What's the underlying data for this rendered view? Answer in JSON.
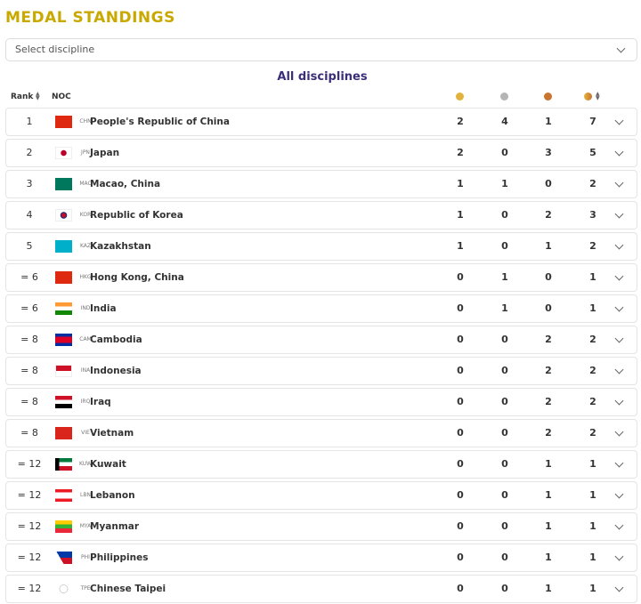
{
  "header": {
    "title": "MEDAL STANDINGS"
  },
  "filter": {
    "placeholder": "Select discipline"
  },
  "table": {
    "caption": "All disciplines",
    "columns": {
      "rank": "Rank",
      "noc": "NOC"
    },
    "rows": [
      [
        "1",
        "CHN",
        "People's Republic of China",
        2,
        4,
        1,
        7
      ],
      [
        "2",
        "JPN",
        "Japan",
        2,
        0,
        3,
        5
      ],
      [
        "3",
        "MAC",
        "Macao, China",
        1,
        1,
        0,
        2
      ],
      [
        "4",
        "KOR",
        "Republic of Korea",
        1,
        0,
        2,
        3
      ],
      [
        "5",
        "KAZ",
        "Kazakhstan",
        1,
        0,
        1,
        2
      ],
      [
        "= 6",
        "HKG",
        "Hong Kong, China",
        0,
        1,
        0,
        1
      ],
      [
        "= 6",
        "IND",
        "India",
        0,
        1,
        0,
        1
      ],
      [
        "= 8",
        "CAM",
        "Cambodia",
        0,
        0,
        2,
        2
      ],
      [
        "= 8",
        "INA",
        "Indonesia",
        0,
        0,
        2,
        2
      ],
      [
        "= 8",
        "IRQ",
        "Iraq",
        0,
        0,
        2,
        2
      ],
      [
        "= 8",
        "VIE",
        "Vietnam",
        0,
        0,
        2,
        2
      ],
      [
        "= 12",
        "KUW",
        "Kuwait",
        0,
        0,
        1,
        1
      ],
      [
        "= 12",
        "LBN",
        "Lebanon",
        0,
        0,
        1,
        1
      ],
      [
        "= 12",
        "MYA",
        "Myanmar",
        0,
        0,
        1,
        1
      ],
      [
        "= 12",
        "PHI",
        "Philippines",
        0,
        0,
        1,
        1
      ],
      [
        "= 12",
        "TPE",
        "Chinese Taipei",
        0,
        0,
        1,
        1
      ]
    ]
  }
}
